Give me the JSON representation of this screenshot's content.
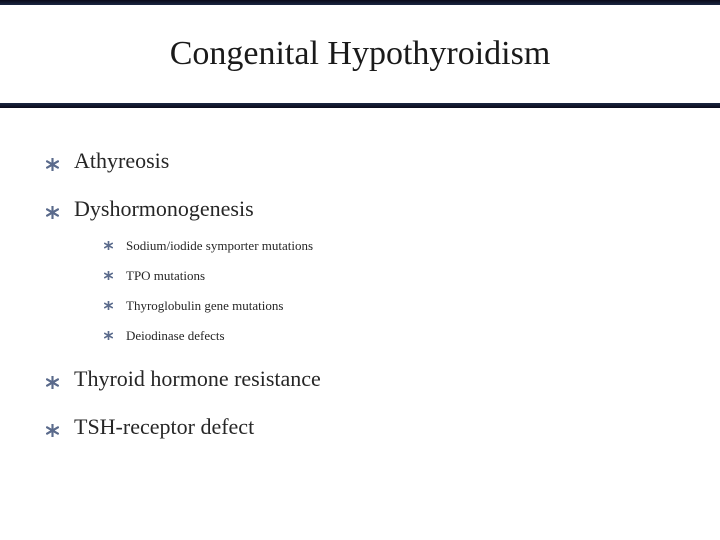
{
  "slide": {
    "title": "Congenital Hypothyroidism",
    "title_fontsize": 34,
    "title_color": "#1a1a1a",
    "band_border_color_dark": "#0a0a1a",
    "band_border_color_mid": "#1b2742",
    "background_color": "#ffffff",
    "text_color": "#262626",
    "bullet_star_color": "#5b6b8c",
    "bullets": [
      {
        "text": "Athyreosis",
        "children": []
      },
      {
        "text": "Dyshormonogenesis",
        "children": [
          {
            "text": "Sodium/iodide symporter mutations"
          },
          {
            "text": "TPO mutations"
          },
          {
            "text": "Thyroglobulin gene mutations"
          },
          {
            "text": "Deiodinase defects"
          }
        ]
      },
      {
        "text": "Thyroid hormone resistance",
        "children": []
      },
      {
        "text": "TSH-receptor defect",
        "children": []
      }
    ],
    "level1_fontsize": 22,
    "level2_fontsize": 13
  }
}
